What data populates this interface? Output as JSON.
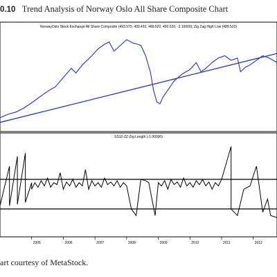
{
  "figure": {
    "number": "0.10",
    "title": "Trend Analysis of Norway Oslo All Share Composite Chart",
    "caption": "art courtesy of MetaStock."
  },
  "chart_data": [
    {
      "type": "line",
      "title": "NorwayOslo Stock Exchange All Share Composite (493.570, 493.410, 489.520, 490.520, -3.10000), Zig Zag High Low (489.520)",
      "ylim": [
        150,
        560
      ],
      "grid": false,
      "x_tick_labels": [
        "2005",
        "2006",
        "2007",
        "2008",
        "2009",
        "2010",
        "2011",
        "2012"
      ],
      "x_tick_years": [
        2005,
        2006,
        2007,
        2008,
        2009,
        2010,
        2011,
        2012
      ],
      "xlim_years": [
        2004.0,
        2012.75
      ],
      "series": [
        {
          "color": "#2232c8",
          "x_years": [
            2004.0,
            2004.25,
            2004.5,
            2004.75,
            2005.0,
            2005.25,
            2005.5,
            2005.75,
            2006.0,
            2006.25,
            2006.4,
            2006.6,
            2006.9,
            2007.1,
            2007.3,
            2007.45,
            2007.6,
            2007.8,
            2008.0,
            2008.2,
            2008.35,
            2008.45,
            2008.6,
            2008.75,
            2008.85,
            2008.95,
            2009.05,
            2009.15,
            2009.3,
            2009.5,
            2009.75,
            2010.0,
            2010.2,
            2010.35,
            2010.5,
            2010.7,
            2010.9,
            2011.1,
            2011.3,
            2011.5,
            2011.6,
            2011.75,
            2011.9,
            2012.1,
            2012.3,
            2012.5,
            2012.75
          ],
          "y_values": [
            180,
            195,
            205,
            222,
            245,
            270,
            295,
            315,
            355,
            395,
            375,
            410,
            450,
            480,
            500,
            510,
            470,
            495,
            520,
            505,
            500,
            495,
            450,
            380,
            300,
            250,
            240,
            270,
            300,
            340,
            370,
            390,
            420,
            380,
            395,
            420,
            440,
            450,
            430,
            440,
            380,
            400,
            410,
            430,
            450,
            440,
            420
          ]
        },
        {
          "name": "Zig Zag High Low",
          "color": "#2232c8",
          "x_years": [
            2004.0,
            2012.75
          ],
          "y_values": [
            160,
            460
          ]
        }
      ]
    },
    {
      "type": "line",
      "title": "SS12-ZZ-Zig Length (-1.00000)",
      "ylim": [
        -20,
        120
      ],
      "reference_lines": [
        60,
        15
      ],
      "x_tick_labels": [
        "2005",
        "2006",
        "2007",
        "2008",
        "2009",
        "2010",
        "2011",
        "2012"
      ],
      "x_tick_years": [
        2005,
        2006,
        2007,
        2008,
        2009,
        2010,
        2011,
        2012
      ],
      "xlim_years": [
        2004.0,
        2012.75
      ],
      "series": [
        {
          "color": "#000000",
          "x_years": [
            2004.0,
            2004.3,
            2004.3,
            2004.55,
            2004.55,
            2004.8,
            2004.8,
            2005.0,
            2005.0,
            2005.1,
            2005.2,
            2005.3,
            2005.4,
            2005.5,
            2005.6,
            2005.7,
            2005.8,
            2005.9,
            2006.0,
            2006.1,
            2006.2,
            2006.3,
            2006.4,
            2006.5,
            2006.6,
            2006.7,
            2006.8,
            2006.9,
            2007.0,
            2007.1,
            2007.2,
            2007.3,
            2007.4,
            2007.5,
            2007.6,
            2007.7,
            2007.8,
            2007.9,
            2008.0,
            2008.15,
            2008.3,
            2008.45,
            2008.6,
            2008.7,
            2008.8,
            2008.9,
            2009.0,
            2009.1,
            2009.2,
            2009.3,
            2009.4,
            2009.5,
            2009.6,
            2009.7,
            2009.8,
            2009.9,
            2010.0,
            2010.1,
            2010.2,
            2010.3,
            2010.4,
            2010.5,
            2010.6,
            2010.7,
            2010.8,
            2010.9,
            2011.0,
            2011.3,
            2011.3,
            2011.5,
            2011.7,
            2011.9,
            2012.1,
            2012.2,
            2012.3,
            2012.45,
            2012.55,
            2012.75
          ],
          "y_values": [
            20,
            80,
            20,
            95,
            22,
            100,
            25,
            55,
            45,
            55,
            48,
            58,
            50,
            62,
            48,
            55,
            52,
            70,
            45,
            56,
            50,
            60,
            48,
            55,
            50,
            75,
            45,
            58,
            50,
            55,
            48,
            62,
            52,
            56,
            50,
            58,
            48,
            55,
            50,
            15,
            5,
            60,
            58,
            55,
            30,
            5,
            55,
            50,
            58,
            45,
            60,
            52,
            56,
            48,
            62,
            50,
            55,
            48,
            58,
            52,
            60,
            50,
            56,
            45,
            55,
            50,
            60,
            110,
            15,
            5,
            45,
            50,
            80,
            45,
            10,
            30,
            5,
            2
          ]
        }
      ]
    }
  ]
}
